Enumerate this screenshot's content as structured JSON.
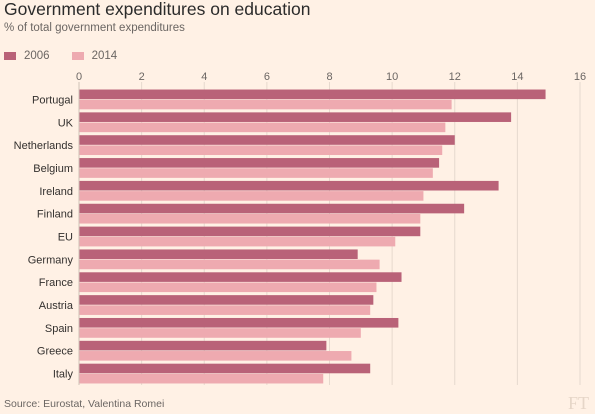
{
  "header": {
    "title": "Government expenditures on education",
    "subtitle": "% of total government expenditures"
  },
  "legend": {
    "series_2006": "2006",
    "series_2014": "2014"
  },
  "footer": {
    "source": "Source: Eurostat, Valentina Romei",
    "logo_text": "FT"
  },
  "colors": {
    "background": "#fff1e5",
    "series_2006": "#b96278",
    "series_2014": "#eeaab0",
    "gridline": "#e6d9ce"
  },
  "chart_data": {
    "type": "bar",
    "orientation": "horizontal",
    "title": "Government expenditures on education",
    "subtitle": "% of total government expenditures",
    "xlabel": "",
    "ylabel": "",
    "xlim": [
      0,
      16
    ],
    "xticks": [
      0,
      2,
      4,
      6,
      8,
      10,
      12,
      14,
      16
    ],
    "grid": true,
    "legend_position": "top-left",
    "categories": [
      "Portugal",
      "UK",
      "Netherlands",
      "Belgium",
      "Ireland",
      "Finland",
      "EU",
      "Germany",
      "France",
      "Austria",
      "Spain",
      "Greece",
      "Italy"
    ],
    "series": [
      {
        "name": "2006",
        "color": "#b96278",
        "values": [
          14.9,
          13.8,
          12.0,
          11.5,
          13.4,
          12.3,
          10.9,
          8.9,
          10.3,
          9.4,
          10.2,
          7.9,
          9.3
        ]
      },
      {
        "name": "2014",
        "color": "#eeaab0",
        "values": [
          11.9,
          11.7,
          11.6,
          11.3,
          11.0,
          10.9,
          10.1,
          9.6,
          9.5,
          9.3,
          9.0,
          8.7,
          7.8
        ]
      }
    ]
  }
}
